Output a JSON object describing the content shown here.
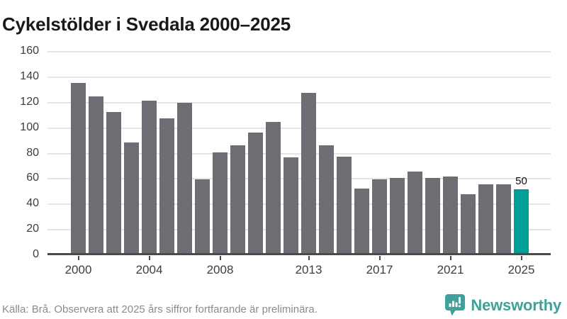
{
  "title": "Cykelstölder i Svedala 2000–2025",
  "footer": {
    "source_note": "Källa: Brå. Observera att 2025 års siffror fortfarande är preliminära.",
    "brand": "Newsworthy"
  },
  "colors": {
    "bar": "#6e6d74",
    "highlight": "#00a099",
    "grid": "#e4e4e4",
    "axis": "#4a4a4a",
    "tick_label": "#3d3d3d",
    "brand_teal": "#3fa19a",
    "source_text": "#8a8a93"
  },
  "chart_data": {
    "type": "bar",
    "title": "Cykelstölder i Svedala 2000–2025",
    "categories": [
      2000,
      2001,
      2002,
      2003,
      2004,
      2005,
      2006,
      2007,
      2008,
      2009,
      2010,
      2011,
      2012,
      2013,
      2014,
      2015,
      2016,
      2017,
      2018,
      2019,
      2020,
      2021,
      2022,
      2023,
      2024,
      2025
    ],
    "values": [
      134,
      123,
      111,
      87,
      120,
      106,
      118,
      58,
      79,
      85,
      95,
      103,
      75,
      126,
      85,
      76,
      51,
      58,
      59,
      64,
      59,
      60,
      46,
      54,
      54,
      50
    ],
    "highlight_index": 25,
    "highlight_label": "50",
    "x_tick_labels": [
      "2000",
      "2004",
      "2008",
      "2013",
      "2017",
      "2021",
      "2025"
    ],
    "y_ticks": [
      0,
      20,
      40,
      60,
      80,
      100,
      120,
      140,
      160
    ],
    "ylim": [
      0,
      160
    ],
    "xlabel": "",
    "ylabel": "",
    "grid": true,
    "legend": false
  }
}
